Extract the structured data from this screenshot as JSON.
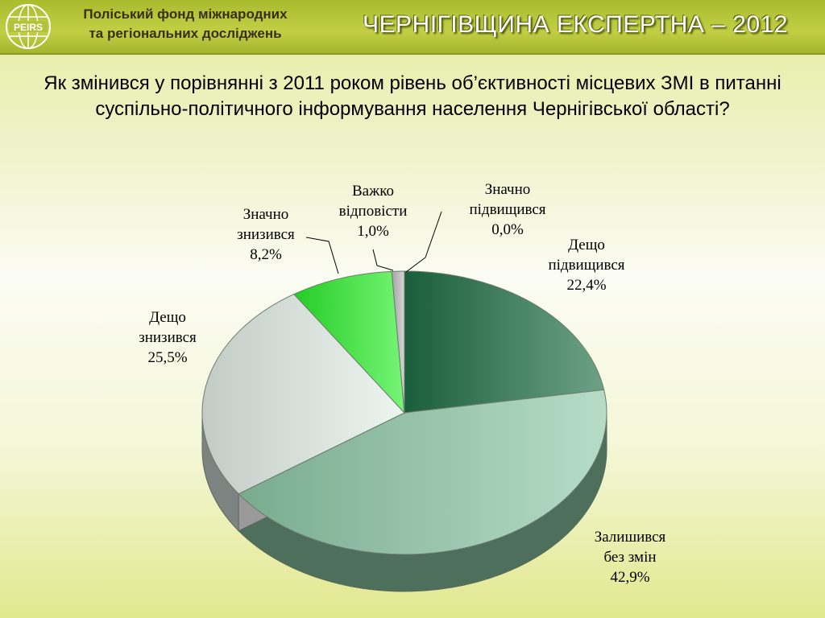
{
  "header": {
    "org_line1": "Поліський фонд міжнародних",
    "org_line2": "та регіональних досліджень",
    "logo_text": "PEIRS",
    "brand": "ЧЕРНІГІВЩИНА ЕКСПЕРТНА – 2012"
  },
  "question": "Як змінився у порівнянні з 2011 роком рівень об’єктивності місцевих ЗМІ в питанні суспільно-політичного інформування населення Чернігівської області?",
  "chart_data": {
    "type": "pie",
    "three_d": true,
    "slices": [
      {
        "label_lines": [
          "Значно",
          "підвищився"
        ],
        "value": 0.0,
        "value_text": "0,0%",
        "color": "#1a8a2a"
      },
      {
        "label_lines": [
          "Дещо",
          "підвищився"
        ],
        "value": 22.4,
        "value_text": "22,4%",
        "color": "#1f6e45"
      },
      {
        "label_lines": [
          "Залишився",
          "без змін"
        ],
        "value": 42.9,
        "value_text": "42,9%",
        "color": "#8ec9a8"
      },
      {
        "label_lines": [
          "Дещо",
          "знизився"
        ],
        "value": 25.5,
        "value_text": "25,5%",
        "color": "#e4efe8"
      },
      {
        "label_lines": [
          "Значно",
          "знизився"
        ],
        "value": 8.2,
        "value_text": "8,2%",
        "color": "#2cf02c"
      },
      {
        "label_lines": [
          "Важко",
          "відповісти"
        ],
        "value": 1.0,
        "value_text": "1,0%",
        "color": "#c0c0c0"
      }
    ]
  }
}
